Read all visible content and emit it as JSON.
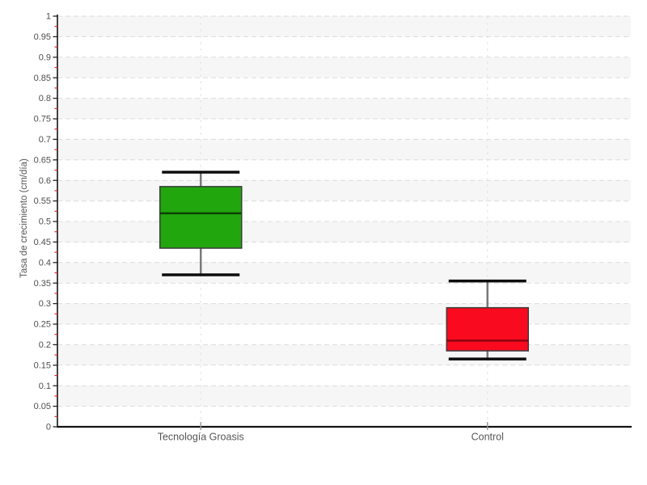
{
  "chart_data": {
    "type": "boxplot",
    "title": "",
    "xlabel": "",
    "ylabel": "Tasa de crecimiento (cm/día)",
    "ylim": [
      0,
      1
    ],
    "y_major_tick_step": 0.05,
    "y_minor_tick_step": 0.025,
    "grid": {
      "horizontal_dashed": true,
      "vertical_dashed_at_categories": true,
      "alternating_bands": true,
      "legend": "none"
    },
    "categories": [
      "Tecnología Groasis",
      "Control"
    ],
    "series": [
      {
        "name": "Tecnología Groasis",
        "min": 0.37,
        "q1": 0.435,
        "median": 0.52,
        "q3": 0.585,
        "max": 0.62,
        "fill_color": "#21a60d",
        "median_color": "#0c4204"
      },
      {
        "name": "Control",
        "min": 0.165,
        "q1": 0.185,
        "median": 0.21,
        "q3": 0.29,
        "max": 0.355,
        "fill_color": "#fa0a1e",
        "median_color": "#8a0511"
      }
    ]
  },
  "colors": {
    "band_fill": "#f6f6f6",
    "h_gridline": "#dcdcdc",
    "v_gridline": "#e6e6e6",
    "axis_line": "#141414",
    "major_tick": "#222222",
    "minor_tick": "#e02222",
    "tick_label": "#4d4d4d",
    "category_label": "#555555",
    "axis_title": "#555555",
    "whisker_stem": "#7a7a7a",
    "whisker_cap": "#0d0d0d",
    "box_border": "#3c3c3c"
  }
}
